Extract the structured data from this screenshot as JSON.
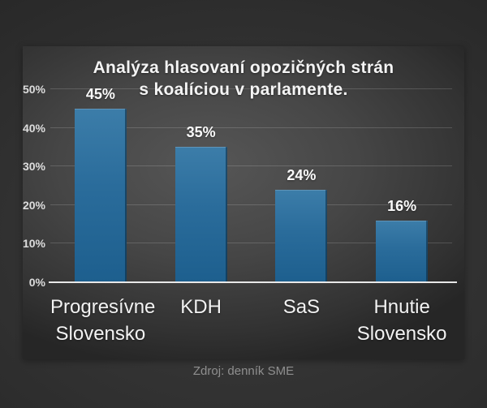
{
  "title": {
    "line1": "Analýza hlasovaní opozičných strán",
    "line2": "s koalíciou v parlamente."
  },
  "source": "Zdroj: denník SME",
  "colors": {
    "bar_top": "#3c7da9",
    "bar_mid": "#2a6c9b",
    "bar_bottom": "#1d5f8e",
    "background_panel": "#464646",
    "background_outer": "#303030",
    "text_primary": "#f4f4f4",
    "text_muted": "#8f8f8f"
  },
  "chart_data": {
    "type": "bar",
    "title": "Analýza hlasovaní opozičných strán s koalíciou v parlamente.",
    "categories": [
      "Progresívne Slovensko",
      "KDH",
      "SaS",
      "Hnutie Slovensko"
    ],
    "values": [
      45,
      35,
      24,
      16
    ],
    "value_labels": [
      "45%",
      "35%",
      "24%",
      "16%"
    ],
    "xlabel": "",
    "ylabel": "",
    "ylim": [
      0,
      50
    ],
    "yticks": [
      0,
      10,
      20,
      30,
      40,
      50
    ],
    "ytick_labels": [
      "0%",
      "10%",
      "20%",
      "30%",
      "40%",
      "50%"
    ],
    "grid": true,
    "legend": false,
    "source": "Zdroj: denník SME"
  }
}
